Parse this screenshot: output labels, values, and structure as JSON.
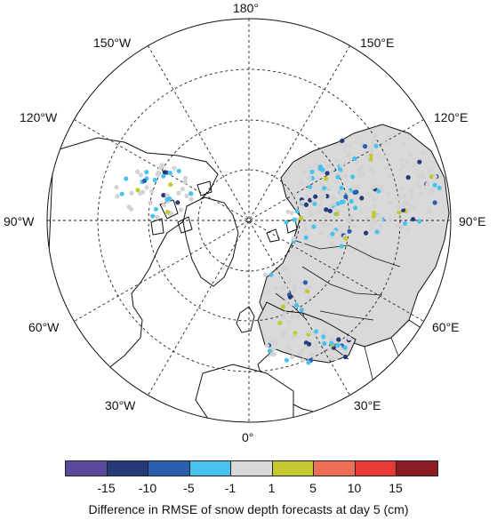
{
  "map": {
    "longitude_labels": {
      "n": "180°",
      "nw": "150°W",
      "ne": "150°E",
      "wnw": "120°W",
      "ene": "120°E",
      "w": "90°W",
      "e": "90°E",
      "wsw": "60°W",
      "ese": "60°E",
      "sw": "30°W",
      "se": "30°E",
      "s": "0°"
    },
    "colors": {
      "land_fill": "#d9d9d9",
      "coast": "#111111",
      "graticule": "#222222",
      "no_change_dot": "#d3d3d3"
    }
  },
  "colorbar": {
    "title": "Difference in RMSE of snow depth forecasts at day 5 (cm)",
    "colors": [
      "#5b4a9c",
      "#263a7a",
      "#2a5fb0",
      "#49c3ee",
      "#d9d9d9",
      "#c3c92e",
      "#ee6f55",
      "#e83a36",
      "#8b1c24"
    ],
    "ticks": [
      "-15",
      "-10",
      "-5",
      "-1",
      "1",
      "5",
      "10",
      "15"
    ]
  }
}
